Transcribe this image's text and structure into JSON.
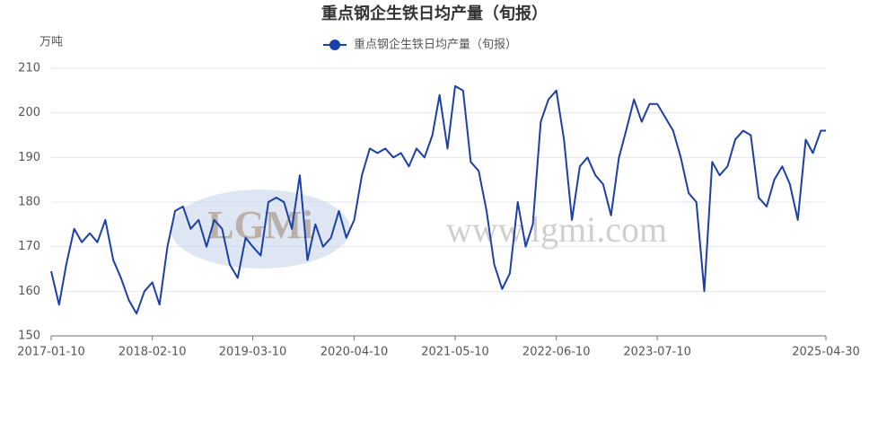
{
  "chart_data": {
    "type": "line",
    "title": "重点钢企生铁日均产量（旬报）",
    "y_label": "万吨",
    "watermark": "www.lgmi.com",
    "logo_text": "LGMi",
    "x": [
      "2017-01-10",
      "2017-02-10",
      "2017-03-10",
      "2017-04-10",
      "2017-05-10",
      "2017-06-10",
      "2017-07-10",
      "2017-08-10",
      "2017-09-10",
      "2017-10-10",
      "2017-11-10",
      "2017-12-10",
      "2018-01-10",
      "2018-02-10",
      "2018-03-10",
      "2018-04-10",
      "2018-05-10",
      "2018-06-10",
      "2018-07-10",
      "2018-08-10",
      "2018-09-10",
      "2018-10-10",
      "2018-11-10",
      "2018-12-10",
      "2019-01-10",
      "2019-02-10",
      "2019-03-10",
      "2019-04-10",
      "2019-05-10",
      "2019-06-10",
      "2019-07-10",
      "2019-08-10",
      "2019-09-10",
      "2019-10-10",
      "2019-11-10",
      "2019-12-10",
      "2020-01-10",
      "2020-02-10",
      "2020-03-10",
      "2020-04-10",
      "2020-05-10",
      "2020-06-10",
      "2020-07-10",
      "2020-08-10",
      "2020-09-10",
      "2020-10-10",
      "2020-11-10",
      "2020-12-10",
      "2021-01-10",
      "2021-02-10",
      "2021-03-10",
      "2021-04-10",
      "2021-05-10",
      "2021-06-10",
      "2021-07-10",
      "2021-08-10",
      "2021-09-10",
      "2021-10-10",
      "2021-11-10",
      "2021-12-10",
      "2022-01-10",
      "2022-02-10",
      "2022-03-10",
      "2022-04-10",
      "2022-05-10",
      "2022-06-10",
      "2022-07-10",
      "2022-08-10",
      "2022-09-10",
      "2022-10-10",
      "2022-11-10",
      "2022-12-10",
      "2023-01-10",
      "2023-02-10",
      "2023-03-10",
      "2023-04-10",
      "2023-05-10",
      "2023-06-10",
      "2023-07-10",
      "2023-08-10",
      "2023-09-10",
      "2023-10-10",
      "2023-11-10",
      "2023-12-10",
      "2024-01-10",
      "2024-02-10",
      "2024-03-10",
      "2024-04-10",
      "2024-05-10",
      "2024-06-10",
      "2024-07-10",
      "2024-08-10",
      "2024-09-10",
      "2024-10-10",
      "2024-11-10",
      "2024-12-10",
      "2025-01-10",
      "2025-02-10",
      "2025-03-10",
      "2025-04-10",
      "2025-04-30"
    ],
    "series": [
      {
        "name": "重点钢企生铁日均产量（旬报）",
        "color": "#1c3fa8",
        "values": [
          164.5,
          157,
          166,
          174,
          171,
          173,
          171,
          176,
          167,
          163,
          158,
          155,
          160,
          162,
          157,
          170,
          178,
          179,
          174,
          176,
          170,
          176,
          174,
          166,
          163,
          172,
          170,
          168,
          180,
          181,
          180,
          174,
          186,
          167,
          175,
          170,
          172,
          178,
          172,
          176,
          186,
          192,
          191,
          192,
          190,
          191,
          188,
          192,
          190,
          195,
          204,
          192,
          206,
          205,
          189,
          187,
          178,
          166,
          160.5,
          164,
          180,
          170,
          175,
          198,
          203,
          205,
          194,
          176,
          188,
          190,
          186,
          184,
          177,
          190,
          196,
          203,
          198,
          202,
          202,
          199,
          196,
          190,
          182,
          180,
          160,
          189,
          186,
          188,
          194,
          196,
          195,
          181,
          179,
          185,
          188,
          184,
          176,
          194,
          191,
          196,
          196
        ]
      }
    ],
    "xlim": [
      "2017-01-10",
      "2025-04-30"
    ],
    "xticks": [
      "2017-01-10",
      "2018-02-10",
      "2019-03-10",
      "2020-04-10",
      "2021-05-10",
      "2022-06-10",
      "2023-07-10",
      "2025-04-30"
    ],
    "ylim": [
      150,
      210
    ],
    "yticks": [
      150,
      160,
      170,
      180,
      190,
      200,
      210
    ],
    "grid": true,
    "legend": "top"
  }
}
